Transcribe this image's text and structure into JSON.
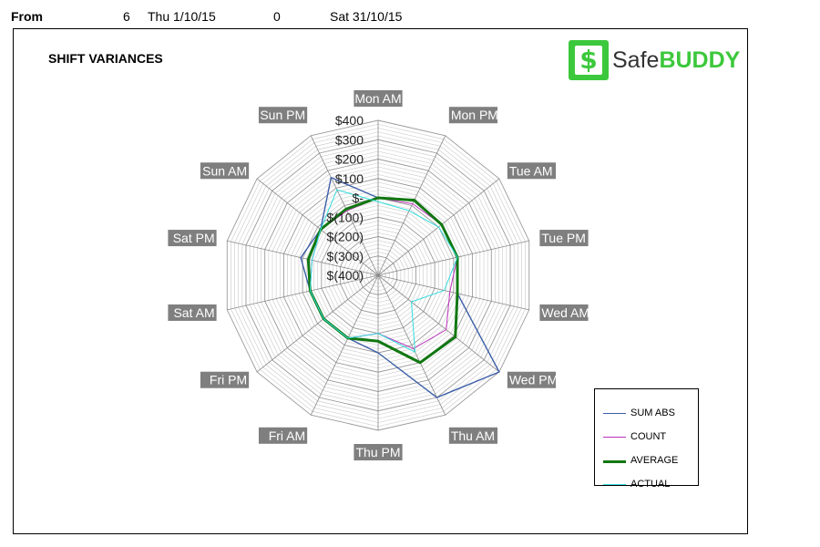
{
  "header": {
    "from_label": "From",
    "value_1": "6",
    "start_date": "Thu 1/10/15",
    "value_2": "0",
    "end_date": "Sat 31/10/15"
  },
  "logo": {
    "icon_glyph": "$",
    "safe": "Safe",
    "buddy": "BUDDY",
    "color": "#3cc83c"
  },
  "chart_data": {
    "type": "radar",
    "title": "SHIFT VARIANCES",
    "categories": [
      "Mon AM",
      "Mon PM",
      "Tue AM",
      "Tue PM",
      "Wed AM",
      "Wed PM",
      "Thu AM",
      "Thu PM",
      "Fri AM",
      "Fri PM",
      "Sat AM",
      "Sat PM",
      "Sun AM",
      "Sun PM"
    ],
    "r_min": -400,
    "r_max": 400,
    "tick_values": [
      400,
      300,
      200,
      100,
      0,
      -100,
      -200,
      -300,
      -400
    ],
    "tick_labels": [
      "$400",
      "$300",
      "$200",
      "$100",
      "$-",
      "$(100)",
      "$(200)",
      "$(300)",
      "$(400)"
    ],
    "minor_grid_step": 20,
    "series": [
      {
        "name": "SUM ABS",
        "color": "#3b5ea8",
        "width": 1.4,
        "values": [
          0,
          30,
          20,
          20,
          20,
          400,
          300,
          0,
          -40,
          -40,
          -40,
          10,
          -20,
          160
        ]
      },
      {
        "name": "COUNT",
        "color": "#bb33bb",
        "width": 1.0,
        "values": [
          0,
          10,
          20,
          20,
          -20,
          50,
          20,
          -100,
          -40,
          -40,
          -40,
          -50,
          -20,
          -30
        ]
      },
      {
        "name": "AVERAGE",
        "color": "#117711",
        "width": 3.0,
        "values": [
          0,
          30,
          20,
          20,
          20,
          110,
          100,
          -60,
          -40,
          -40,
          -40,
          -30,
          -20,
          -20
        ]
      },
      {
        "name": "ACTUAL",
        "color": "#33dddd",
        "width": 1.0,
        "values": [
          -20,
          -30,
          0,
          20,
          -50,
          -180,
          40,
          -100,
          -40,
          -40,
          -40,
          -50,
          -20,
          90
        ]
      }
    ]
  }
}
